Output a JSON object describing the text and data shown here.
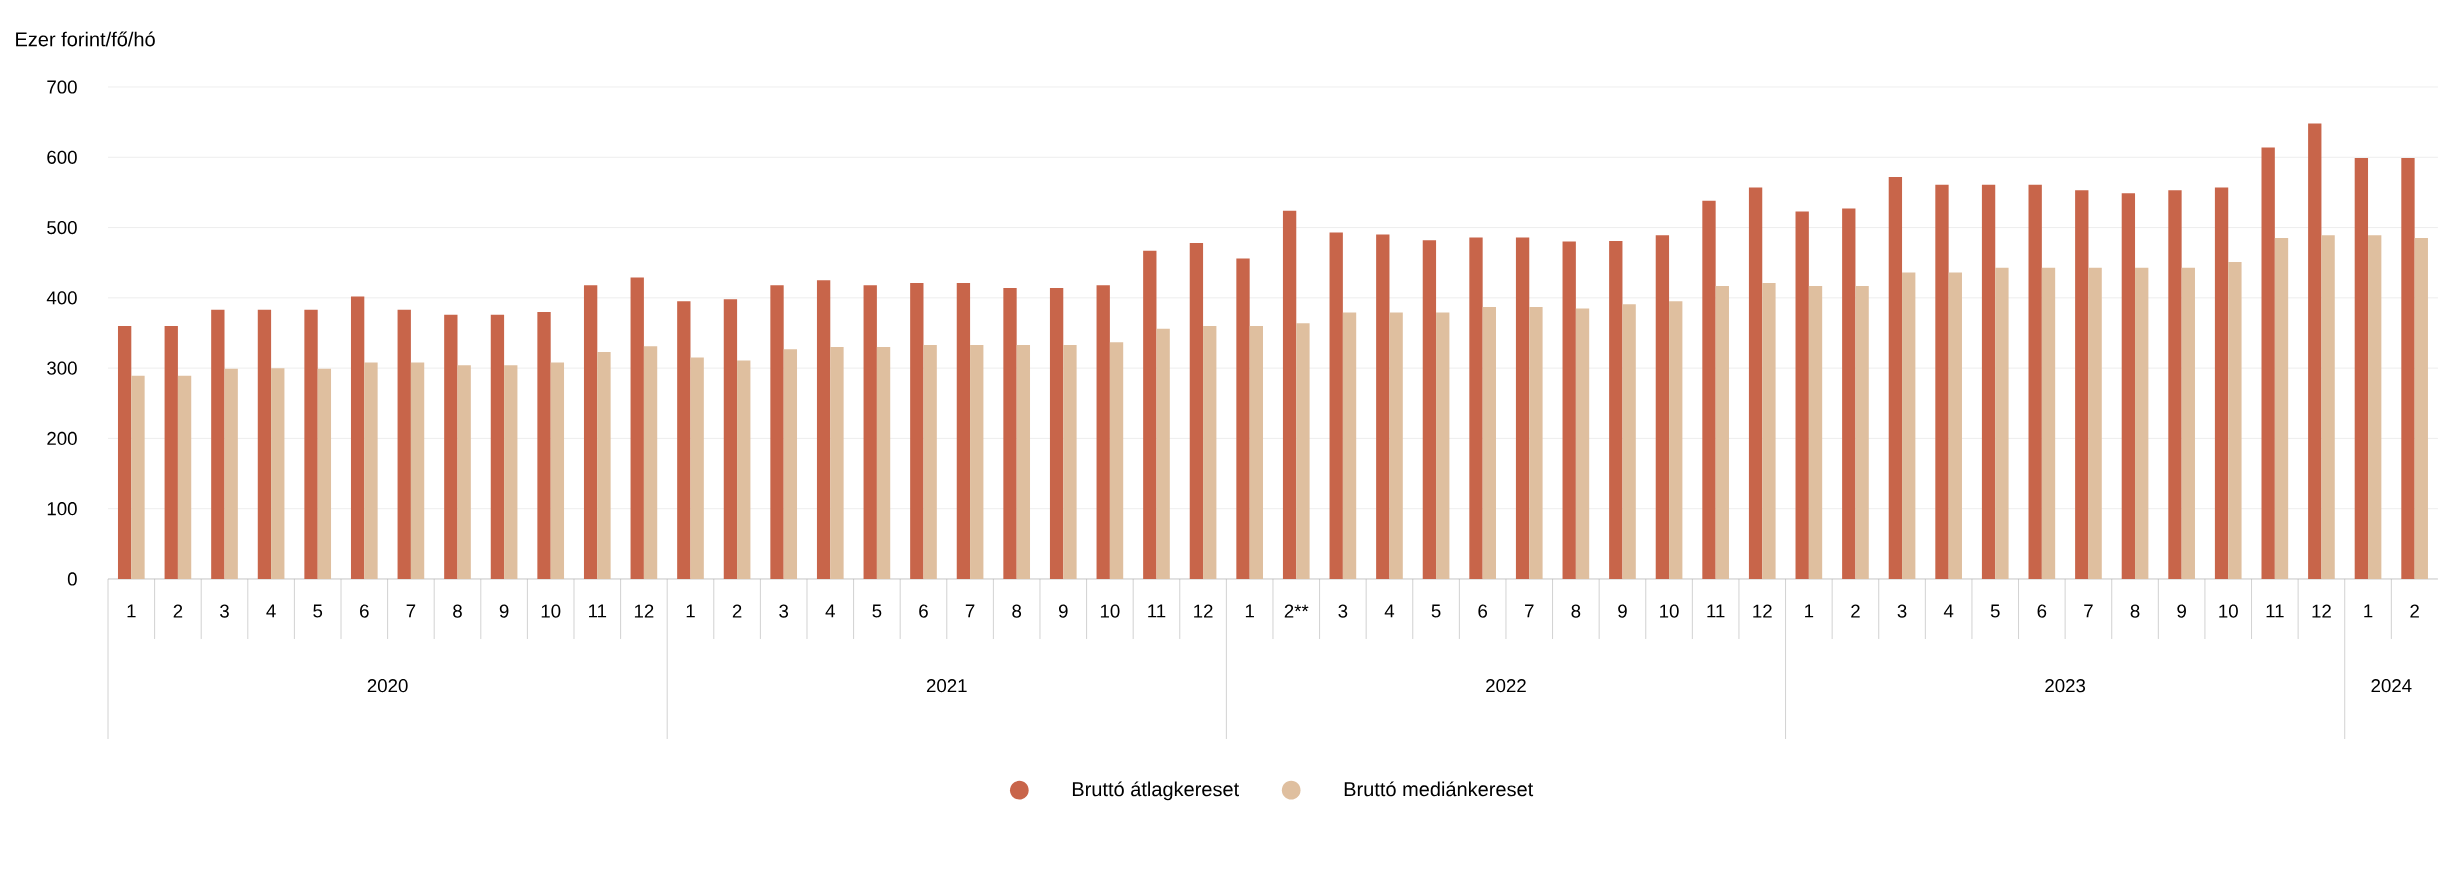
{
  "chart_data": {
    "type": "bar",
    "ylabel": "Ezer forint/fő/hó",
    "categories": [
      "1",
      "2",
      "3",
      "4",
      "5",
      "6",
      "7",
      "8",
      "9",
      "10",
      "11",
      "12",
      "1",
      "2",
      "3",
      "4",
      "5",
      "6",
      "7",
      "8",
      "9",
      "10",
      "11",
      "12",
      "1",
      "2**",
      "3",
      "4",
      "5",
      "6",
      "7",
      "8",
      "9",
      "10",
      "11",
      "12",
      "1",
      "2",
      "3",
      "4",
      "5",
      "6",
      "7",
      "8",
      "9",
      "10",
      "11",
      "12",
      "1",
      "2"
    ],
    "series": [
      {
        "name": "Bruttó átlagkereset",
        "color": "#c8654a",
        "values": [
          360,
          360,
          383,
          383,
          383,
          402,
          383,
          376,
          376,
          380,
          418,
          429,
          395,
          398,
          418,
          425,
          418,
          421,
          421,
          414,
          414,
          418,
          467,
          478,
          456,
          524,
          493,
          490,
          482,
          486,
          486,
          480,
          481,
          489,
          538,
          557,
          523,
          527,
          572,
          561,
          561,
          561,
          553,
          549,
          553,
          557,
          614,
          648,
          599,
          599
        ]
      },
      {
        "name": "Bruttó mediánkereset",
        "color": "#dfbf9f",
        "values": [
          289,
          289,
          299,
          300,
          299,
          308,
          308,
          304,
          304,
          308,
          323,
          331,
          315,
          311,
          327,
          330,
          330,
          333,
          333,
          333,
          333,
          337,
          356,
          360,
          360,
          364,
          379,
          379,
          379,
          387,
          387,
          385,
          391,
          395,
          417,
          421,
          417,
          417,
          436,
          436,
          443,
          443,
          443,
          443,
          443,
          451,
          485,
          489,
          489,
          485
        ]
      }
    ],
    "ylim": [
      0,
      700
    ],
    "yticks": [
      0,
      100,
      200,
      300,
      400,
      500,
      600,
      700
    ],
    "grid": "y",
    "legend": "bottom",
    "annotations": [
      "2020",
      "2021",
      "2022",
      "2023",
      "2024"
    ]
  }
}
